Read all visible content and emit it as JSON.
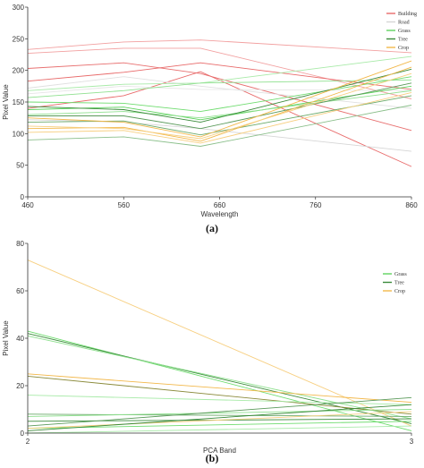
{
  "chart_data": [
    {
      "type": "line",
      "panel_label": "(a)",
      "xlabel": "Wavelength",
      "ylabel": "Pixel Value",
      "xlim": [
        460,
        860
      ],
      "ylim": [
        0,
        300
      ],
      "xticks": [
        460,
        560,
        660,
        760,
        860
      ],
      "yticks": [
        0,
        50,
        100,
        150,
        200,
        250,
        300
      ],
      "x": [
        460,
        560,
        640,
        860
      ],
      "grid": false,
      "legend_position": "top-right",
      "legend": [
        {
          "name": "Building",
          "color": "#e86a6a"
        },
        {
          "name": "Road",
          "color": "#d6d6d6"
        },
        {
          "name": "Grass",
          "color": "#5fd35f"
        },
        {
          "name": "Tree",
          "color": "#3a8a3a"
        },
        {
          "name": "Crop",
          "color": "#f2b84b"
        }
      ],
      "series": [
        {
          "class": "Building",
          "color": "#f2a0a0",
          "values": [
            233,
            245,
            248,
            228
          ]
        },
        {
          "class": "Building",
          "color": "#f2a0a0",
          "values": [
            227,
            235,
            235,
            155
          ]
        },
        {
          "class": "Building",
          "color": "#e87070",
          "values": [
            203,
            212,
            195,
            105
          ]
        },
        {
          "class": "Building",
          "color": "#e86a6a",
          "values": [
            183,
            197,
            212,
            170
          ]
        },
        {
          "class": "Building",
          "color": "#e86a6a",
          "values": [
            140,
            160,
            198,
            48
          ]
        },
        {
          "class": "Road",
          "color": "#e0e0e0",
          "values": [
            172,
            190,
            175,
            140
          ]
        },
        {
          "class": "Road",
          "color": "#d6d6d6",
          "values": [
            122,
            118,
            108,
            72
          ]
        },
        {
          "class": "Road",
          "color": "#e6e6e6",
          "values": [
            163,
            175,
            170,
            168
          ]
        },
        {
          "class": "Grass",
          "color": "#a8eaa8",
          "values": [
            168,
            178,
            180,
            222
          ]
        },
        {
          "class": "Grass",
          "color": "#8fe08f",
          "values": [
            157,
            168,
            180,
            185
          ]
        },
        {
          "class": "Grass",
          "color": "#6fdc6f",
          "values": [
            150,
            148,
            135,
            190
          ]
        },
        {
          "class": "Grass",
          "color": "#5fd35f",
          "values": [
            138,
            142,
            122,
            175
          ]
        },
        {
          "class": "Grass",
          "color": "#8fe08f",
          "values": [
            130,
            135,
            125,
            168
          ]
        },
        {
          "class": "Tree",
          "color": "#3a8a3a",
          "values": [
            143,
            138,
            118,
            202
          ]
        },
        {
          "class": "Tree",
          "color": "#5a9a5a",
          "values": [
            128,
            128,
            108,
            180
          ]
        },
        {
          "class": "Tree",
          "color": "#8abf8a",
          "values": [
            90,
            95,
            80,
            145
          ]
        },
        {
          "class": "Tree",
          "color": "#6aaa6a",
          "values": [
            118,
            120,
            98,
            160
          ]
        },
        {
          "class": "Crop",
          "color": "#f2b84b",
          "values": [
            108,
            110,
            88,
            205
          ]
        },
        {
          "class": "Crop",
          "color": "#f7cf80",
          "values": [
            112,
            108,
            92,
            195
          ]
        },
        {
          "class": "Crop",
          "color": "#f2b84b",
          "values": [
            125,
            118,
            95,
            215
          ]
        },
        {
          "class": "Crop",
          "color": "#f7cf80",
          "values": [
            102,
            105,
            85,
            165
          ]
        }
      ]
    },
    {
      "type": "line",
      "panel_label": "(b)",
      "xlabel": "PCA Band",
      "ylabel": "Pixel Value",
      "xlim": [
        2,
        3
      ],
      "ylim": [
        0,
        80
      ],
      "xticks": [
        2,
        3
      ],
      "yticks": [
        0,
        20,
        40,
        60,
        80
      ],
      "x": [
        2,
        3
      ],
      "grid": false,
      "legend_position": "top-right",
      "legend": [
        {
          "name": "Grass",
          "color": "#5fd35f"
        },
        {
          "name": "Tree",
          "color": "#3a8a3a"
        },
        {
          "name": "Crop",
          "color": "#f2b84b"
        }
      ],
      "series": [
        {
          "class": "Crop",
          "color": "#f7cf80",
          "values": [
            73,
            3
          ]
        },
        {
          "class": "Grass",
          "color": "#6fdc6f",
          "values": [
            43,
            1
          ]
        },
        {
          "class": "Tree",
          "color": "#3a8a3a",
          "values": [
            42,
            4
          ]
        },
        {
          "class": "Grass",
          "color": "#8fe08f",
          "values": [
            41,
            6
          ]
        },
        {
          "class": "Crop",
          "color": "#f2b84b",
          "values": [
            25,
            13
          ]
        },
        {
          "class": "Tree",
          "color": "#8a8a3a",
          "values": [
            24,
            8
          ]
        },
        {
          "class": "Grass",
          "color": "#a8eaa8",
          "values": [
            16,
            12
          ]
        },
        {
          "class": "Tree",
          "color": "#6aaa6a",
          "values": [
            8,
            7
          ]
        },
        {
          "class": "Grass",
          "color": "#8fe08f",
          "values": [
            7,
            10
          ]
        },
        {
          "class": "Tree",
          "color": "#3a8a3a",
          "values": [
            5,
            6
          ]
        },
        {
          "class": "Tree",
          "color": "#5a9a5a",
          "values": [
            3,
            15
          ]
        },
        {
          "class": "Grass",
          "color": "#6fdc6f",
          "values": [
            2,
            5
          ]
        },
        {
          "class": "Crop",
          "color": "#f7cf80",
          "values": [
            2,
            9
          ]
        },
        {
          "class": "Tree",
          "color": "#3a8a3a",
          "values": [
            1,
            12
          ]
        },
        {
          "class": "Grass",
          "color": "#a8eaa8",
          "values": [
            0,
            3
          ]
        }
      ]
    }
  ]
}
